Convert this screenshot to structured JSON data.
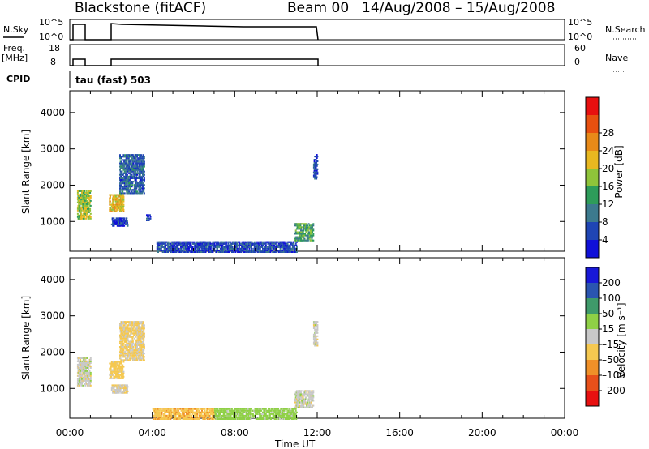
{
  "header": {
    "station": "Blackstone (fitACF)",
    "beam": "Beam 00",
    "dates": "14/Aug/2008 – 15/Aug/2008"
  },
  "strips": {
    "nsky_label": "N.Sky",
    "nsky_ticks": [
      "10^5",
      "10^0"
    ],
    "right_ticks_top": [
      "10^5",
      "10^0"
    ],
    "nsearch_label": "N.Search",
    "freq_label": "Freq.",
    "freq_unit": "[MHz]",
    "freq_ticks": [
      "18",
      "8"
    ],
    "nave_ticks": [
      "60",
      "0"
    ],
    "nave_label": "Nave",
    "cpid_label": "CPID",
    "cpid_value": "tau (fast) 503"
  },
  "colors": {
    "power": [
      "#1010d8",
      "#1f45b4",
      "#3c7a8e",
      "#2e9c5a",
      "#8fc43a",
      "#e8b820",
      "#e88a18",
      "#e85010",
      "#e81010"
    ],
    "velocity": [
      "#e81010",
      "#e8501a",
      "#f09028",
      "#f5c850",
      "#c8c8c8",
      "#8fd046",
      "#3f9a6a",
      "#2a55b0",
      "#1818d8"
    ]
  },
  "chart_data": [
    {
      "type": "heatmap",
      "panel": "power",
      "xlabel": "",
      "ylabel": "Slant Range [km]",
      "xlim": [
        0,
        24
      ],
      "ylim": [
        180,
        4600
      ],
      "yticks": [
        "1000",
        "2000",
        "3000",
        "4000"
      ],
      "colorbar_label": "Power [dB]",
      "colorbar_ticks": [
        "4",
        "8",
        "12",
        "16",
        "20",
        "24",
        "28"
      ],
      "regions": [
        {
          "t0": 0.35,
          "t1": 1.0,
          "r0": 1100,
          "r1": 1900,
          "v": 18
        },
        {
          "t0": 1.9,
          "t1": 2.6,
          "r0": 1300,
          "r1": 1800,
          "v": 22
        },
        {
          "t0": 2.4,
          "t1": 3.6,
          "r0": 1800,
          "r1": 2900,
          "v": 8
        },
        {
          "t0": 2.0,
          "t1": 2.8,
          "r0": 900,
          "r1": 1150,
          "v": 5
        },
        {
          "t0": 3.7,
          "t1": 3.9,
          "r0": 1050,
          "r1": 1250,
          "v": 4
        },
        {
          "t0": 4.2,
          "t1": 11.0,
          "r0": 180,
          "r1": 500,
          "v": 6
        },
        {
          "t0": 10.9,
          "t1": 11.8,
          "r0": 500,
          "r1": 1000,
          "v": 14
        },
        {
          "t0": 11.8,
          "t1": 12.0,
          "r0": 2200,
          "r1": 2900,
          "v": 6
        }
      ]
    },
    {
      "type": "heatmap",
      "panel": "velocity",
      "xlabel": "Time UT",
      "ylabel": "Slant Range [km]",
      "xlim": [
        0,
        24
      ],
      "ylim": [
        180,
        4600
      ],
      "xticks": [
        "00:00",
        "04:00",
        "08:00",
        "12:00",
        "16:00",
        "20:00",
        "00:00"
      ],
      "yticks": [
        "1000",
        "2000",
        "3000",
        "4000"
      ],
      "colorbar_label": "Velocity [m s⁻¹]",
      "colorbar_ticks": [
        "200",
        "100",
        "50",
        "15",
        "–15",
        "–50",
        "–100",
        "–200"
      ],
      "regions": [
        {
          "t0": 0.35,
          "t1": 1.0,
          "r0": 1100,
          "r1": 1900,
          "v": 0
        },
        {
          "t0": 1.9,
          "t1": 2.6,
          "r0": 1300,
          "r1": 1800,
          "v": -30
        },
        {
          "t0": 2.4,
          "t1": 3.6,
          "r0": 1800,
          "r1": 2900,
          "v": -20
        },
        {
          "t0": 2.0,
          "t1": 2.8,
          "r0": 900,
          "r1": 1150,
          "v": -10
        },
        {
          "t0": 4.0,
          "t1": 7.0,
          "r0": 180,
          "r1": 500,
          "v": -40
        },
        {
          "t0": 7.0,
          "t1": 11.0,
          "r0": 180,
          "r1": 500,
          "v": 30
        },
        {
          "t0": 10.9,
          "t1": 11.8,
          "r0": 500,
          "r1": 1000,
          "v": 0
        },
        {
          "t0": 11.8,
          "t1": 12.0,
          "r0": 2200,
          "r1": 2900,
          "v": 0
        }
      ]
    }
  ]
}
